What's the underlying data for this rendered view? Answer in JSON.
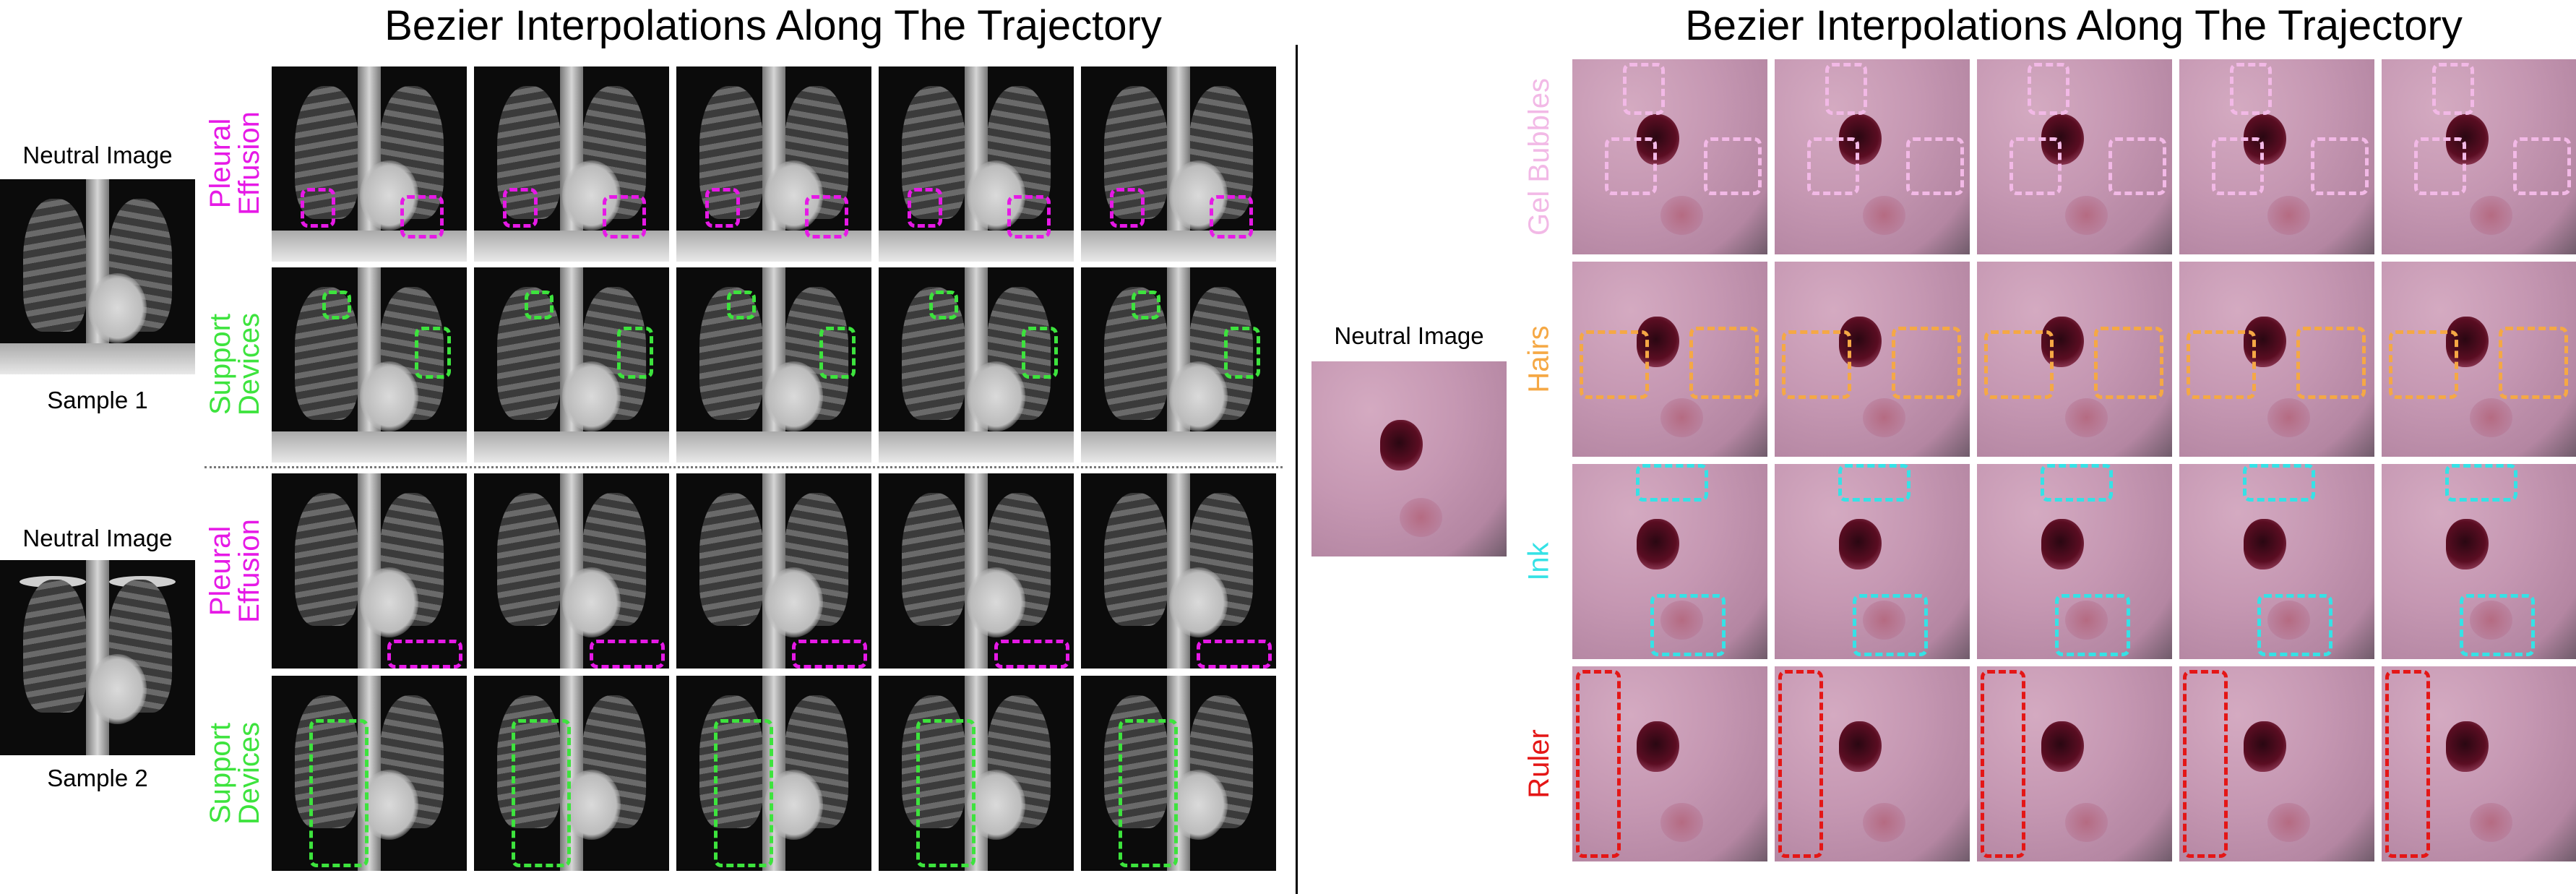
{
  "left_panel": {
    "title": "Bezier Interpolations Along The Trajectory",
    "samples": [
      {
        "neutral_label": "Neutral Image",
        "sample_label": "Sample 1",
        "rows": [
          {
            "label_line1": "Pleural",
            "label_line2": "Effusion",
            "color": "#e619e6"
          },
          {
            "label_line1": "Support",
            "label_line2": "Devices",
            "color": "#3de33d"
          }
        ]
      },
      {
        "neutral_label": "Neutral Image",
        "sample_label": "Sample 2",
        "rows": [
          {
            "label_line1": "Pleural",
            "label_line2": "Effusion",
            "color": "#e619e6"
          },
          {
            "label_line1": "Support",
            "label_line2": "Devices",
            "color": "#3de33d"
          }
        ]
      }
    ]
  },
  "right_panel": {
    "title": "Bezier Interpolations Along The Trajectory",
    "neutral_label": "Neutral Image",
    "rows": [
      {
        "label": "Gel Bubbles",
        "color": "#f2b9e6"
      },
      {
        "label": "Hairs",
        "color": "#f5a845"
      },
      {
        "label": "Ink",
        "color": "#35e2e6"
      },
      {
        "label": "Ruler",
        "color": "#e41616"
      }
    ]
  }
}
